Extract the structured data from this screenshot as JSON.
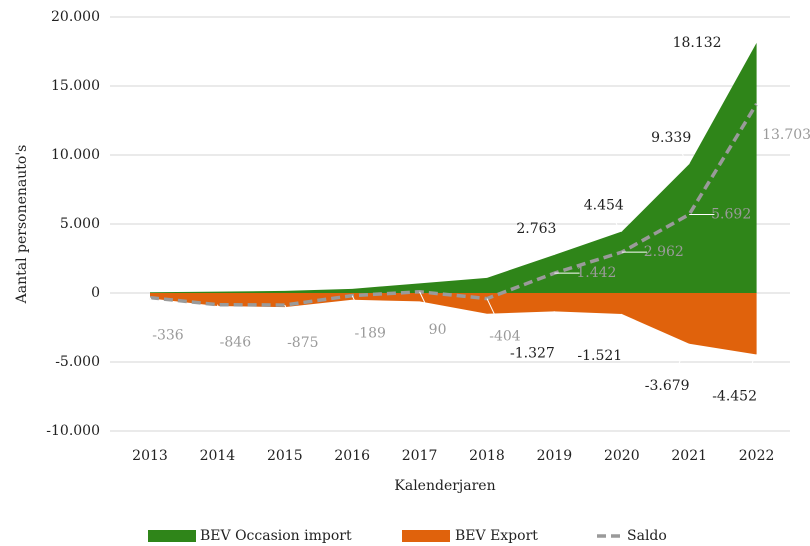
{
  "chart_data": {
    "type": "area",
    "xlabel": "Kalenderjaren",
    "ylabel": "Aantal personenauto's",
    "categories": [
      "2013",
      "2014",
      "2015",
      "2016",
      "2017",
      "2018",
      "2019",
      "2020",
      "2021",
      "2022"
    ],
    "series": [
      {
        "name": "BEV Occasion import",
        "type": "area",
        "color": "#2f8519",
        "values": [
          50,
          100,
          150,
          300,
          700,
          1100,
          2763,
          4454,
          9339,
          18132
        ],
        "value_labels": [
          null,
          null,
          null,
          null,
          null,
          null,
          "2.763",
          "4.454",
          "9.339",
          "18.132"
        ]
      },
      {
        "name": "BEV Export",
        "type": "area",
        "color": "#e0620c",
        "values": [
          -386,
          -946,
          -1025,
          -489,
          -610,
          -1504,
          -1327,
          -1521,
          -3679,
          -4452
        ],
        "value_labels": [
          null,
          null,
          null,
          null,
          null,
          null,
          "-1.327",
          "-1.521",
          "-3.679",
          "-4.452"
        ]
      },
      {
        "name": "Saldo",
        "type": "line",
        "color": "#9a9a9a",
        "values": [
          -336,
          -846,
          -875,
          -189,
          90,
          -404,
          1442,
          2962,
          5692,
          13703
        ],
        "value_labels": [
          "-336",
          "-846",
          "-875",
          "-189",
          "90",
          "-404",
          "1.442",
          "2.962",
          "5.692",
          "13.703"
        ]
      }
    ],
    "ylim": [
      -10000,
      20000
    ],
    "yticks": [
      {
        "value": -10000,
        "label": "-10.000"
      },
      {
        "value": -5000,
        "label": "-5.000"
      },
      0,
      {
        "value": 5000,
        "label": "5.000"
      },
      {
        "value": 10000,
        "label": "10.000"
      },
      {
        "value": 15000,
        "label": "15.000"
      },
      {
        "value": 20000,
        "label": "20.000"
      }
    ],
    "grid": true
  }
}
